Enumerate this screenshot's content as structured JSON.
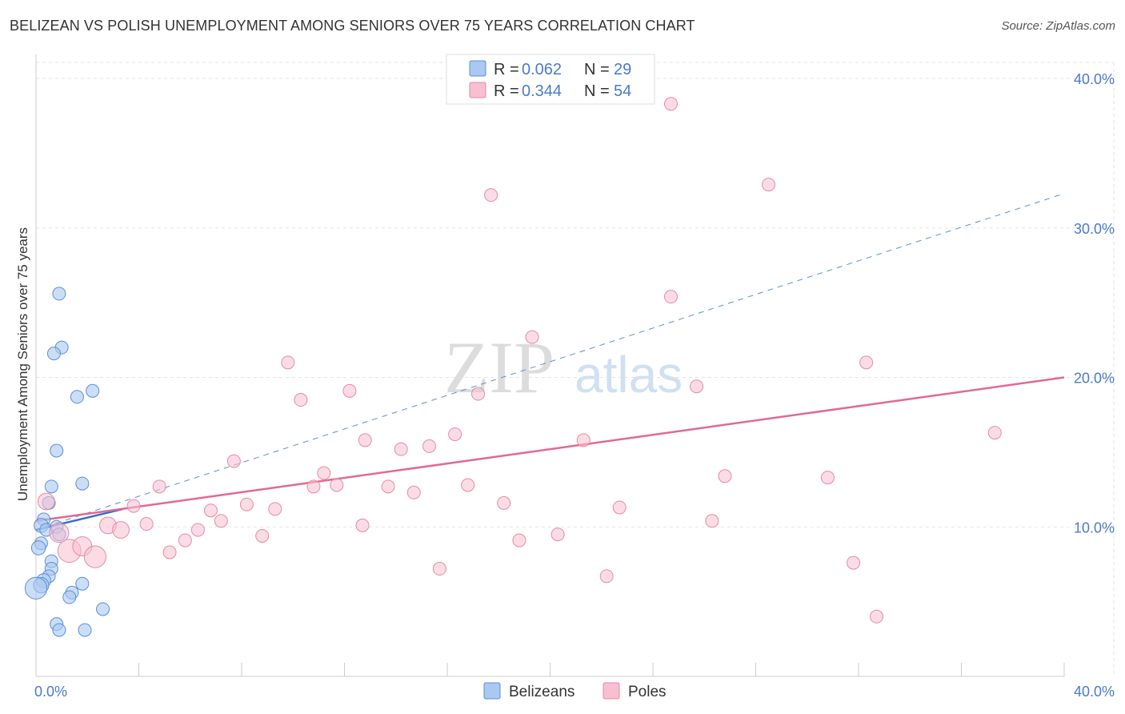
{
  "title": "BELIZEAN VS POLISH UNEMPLOYMENT AMONG SENIORS OVER 75 YEARS CORRELATION CHART",
  "source": "Source: ZipAtlas.com",
  "watermark": {
    "zip": "ZIP",
    "atlas": "atlas"
  },
  "colors": {
    "belizeans_fill": "#aac8f0",
    "belizeans_stroke": "#5a8fd8",
    "belizeans_line": "#3a6fc8",
    "poles_fill": "#f7bfd0",
    "poles_stroke": "#e58aa8",
    "poles_line": "#e06a92",
    "tick_text": "#4a7bc8",
    "grid": "#e3e3e3"
  },
  "legend": {
    "rows": [
      {
        "r_label": "R = ",
        "r_value": "0.062",
        "n_label": "N = ",
        "n_value": "29"
      },
      {
        "r_label": "R = ",
        "r_value": "0.344",
        "n_label": "N = ",
        "n_value": "54"
      }
    ]
  },
  "bottom_legend": {
    "series1": "Belizeans",
    "series2": "Poles"
  },
  "chart_data": {
    "type": "scatter",
    "title": "BELIZEAN VS POLISH UNEMPLOYMENT AMONG SENIORS OVER 75 YEARS CORRELATION CHART",
    "xlabel": "",
    "ylabel": "Unemployment Among Seniors over 75 years",
    "xlim": [
      0,
      40
    ],
    "ylim": [
      0,
      40
    ],
    "x_tick_labels": [
      "0.0%",
      "40.0%"
    ],
    "y_ticks": [
      10,
      20,
      30,
      40
    ],
    "y_tick_labels": [
      "10.0%",
      "20.0%",
      "30.0%",
      "40.0%"
    ],
    "series": [
      {
        "name": "Belizeans",
        "r": 0.062,
        "n": 29,
        "trendline": {
          "x": [
            0,
            3.4
          ],
          "y": [
            9.8,
            11.2
          ],
          "style": "solid"
        },
        "trendline_extended": {
          "x": [
            0,
            40
          ],
          "y": [
            9.8,
            32.3
          ],
          "style": "dashed"
        },
        "points": [
          {
            "x": 0.9,
            "y": 25.6,
            "s": 1
          },
          {
            "x": 1.0,
            "y": 22.0,
            "s": 1
          },
          {
            "x": 0.7,
            "y": 21.6,
            "s": 1
          },
          {
            "x": 1.6,
            "y": 18.7,
            "s": 1
          },
          {
            "x": 2.2,
            "y": 19.1,
            "s": 1
          },
          {
            "x": 0.8,
            "y": 15.1,
            "s": 1
          },
          {
            "x": 0.6,
            "y": 12.7,
            "s": 1
          },
          {
            "x": 1.8,
            "y": 12.9,
            "s": 1
          },
          {
            "x": 0.5,
            "y": 11.6,
            "s": 1
          },
          {
            "x": 0.3,
            "y": 10.5,
            "s": 1
          },
          {
            "x": 0.2,
            "y": 10.1,
            "s": 1.1
          },
          {
            "x": 0.4,
            "y": 9.8,
            "s": 1
          },
          {
            "x": 0.8,
            "y": 10.0,
            "s": 1
          },
          {
            "x": 0.9,
            "y": 9.5,
            "s": 1
          },
          {
            "x": 0.2,
            "y": 8.9,
            "s": 1
          },
          {
            "x": 0.1,
            "y": 8.6,
            "s": 1.1
          },
          {
            "x": 0.6,
            "y": 7.7,
            "s": 1
          },
          {
            "x": 0.6,
            "y": 7.2,
            "s": 1
          },
          {
            "x": 0.5,
            "y": 6.7,
            "s": 1
          },
          {
            "x": 1.8,
            "y": 6.2,
            "s": 1
          },
          {
            "x": 0.3,
            "y": 6.4,
            "s": 1.1
          },
          {
            "x": 0.2,
            "y": 6.1,
            "s": 1.2
          },
          {
            "x": 0.0,
            "y": 5.9,
            "s": 1.7
          },
          {
            "x": 1.4,
            "y": 5.6,
            "s": 1
          },
          {
            "x": 1.3,
            "y": 5.3,
            "s": 1
          },
          {
            "x": 2.6,
            "y": 4.5,
            "s": 1
          },
          {
            "x": 0.8,
            "y": 3.5,
            "s": 1
          },
          {
            "x": 0.9,
            "y": 3.1,
            "s": 1
          },
          {
            "x": 1.9,
            "y": 3.1,
            "s": 1
          }
        ]
      },
      {
        "name": "Poles",
        "r": 0.344,
        "n": 54,
        "trendline": {
          "x": [
            0,
            40
          ],
          "y": [
            10.4,
            20.0
          ],
          "style": "solid"
        },
        "points": [
          {
            "x": 0.4,
            "y": 11.7,
            "s": 1.3
          },
          {
            "x": 0.9,
            "y": 9.6,
            "s": 1.5
          },
          {
            "x": 1.3,
            "y": 8.4,
            "s": 1.8
          },
          {
            "x": 1.8,
            "y": 8.7,
            "s": 1.5
          },
          {
            "x": 2.3,
            "y": 8.0,
            "s": 1.7
          },
          {
            "x": 2.8,
            "y": 10.1,
            "s": 1.3
          },
          {
            "x": 3.3,
            "y": 9.8,
            "s": 1.3
          },
          {
            "x": 3.8,
            "y": 11.4,
            "s": 1
          },
          {
            "x": 4.3,
            "y": 10.2,
            "s": 1
          },
          {
            "x": 4.8,
            "y": 12.7,
            "s": 1
          },
          {
            "x": 5.2,
            "y": 8.3,
            "s": 1
          },
          {
            "x": 5.8,
            "y": 9.1,
            "s": 1
          },
          {
            "x": 6.3,
            "y": 9.8,
            "s": 1
          },
          {
            "x": 6.8,
            "y": 11.1,
            "s": 1
          },
          {
            "x": 7.2,
            "y": 10.4,
            "s": 1
          },
          {
            "x": 7.7,
            "y": 14.4,
            "s": 1
          },
          {
            "x": 8.2,
            "y": 11.5,
            "s": 1
          },
          {
            "x": 8.8,
            "y": 9.4,
            "s": 1
          },
          {
            "x": 9.3,
            "y": 11.2,
            "s": 1
          },
          {
            "x": 9.8,
            "y": 21.0,
            "s": 1
          },
          {
            "x": 10.3,
            "y": 18.5,
            "s": 1
          },
          {
            "x": 10.8,
            "y": 12.7,
            "s": 1
          },
          {
            "x": 11.2,
            "y": 13.6,
            "s": 1
          },
          {
            "x": 11.7,
            "y": 12.8,
            "s": 1
          },
          {
            "x": 12.2,
            "y": 19.1,
            "s": 1
          },
          {
            "x": 12.7,
            "y": 10.1,
            "s": 1
          },
          {
            "x": 12.8,
            "y": 15.8,
            "s": 1
          },
          {
            "x": 13.7,
            "y": 12.7,
            "s": 1
          },
          {
            "x": 14.2,
            "y": 15.2,
            "s": 1
          },
          {
            "x": 14.7,
            "y": 12.3,
            "s": 1
          },
          {
            "x": 15.3,
            "y": 15.4,
            "s": 1
          },
          {
            "x": 15.7,
            "y": 7.2,
            "s": 1
          },
          {
            "x": 16.3,
            "y": 16.2,
            "s": 1
          },
          {
            "x": 16.8,
            "y": 12.8,
            "s": 1
          },
          {
            "x": 17.2,
            "y": 18.9,
            "s": 1
          },
          {
            "x": 17.7,
            "y": 32.2,
            "s": 1
          },
          {
            "x": 18.2,
            "y": 11.6,
            "s": 1
          },
          {
            "x": 18.8,
            "y": 9.1,
            "s": 1
          },
          {
            "x": 19.3,
            "y": 22.7,
            "s": 1
          },
          {
            "x": 20.3,
            "y": 9.5,
            "s": 1
          },
          {
            "x": 21.3,
            "y": 15.8,
            "s": 1
          },
          {
            "x": 22.2,
            "y": 6.7,
            "s": 1
          },
          {
            "x": 22.7,
            "y": 11.3,
            "s": 1
          },
          {
            "x": 24.7,
            "y": 25.4,
            "s": 1
          },
          {
            "x": 24.7,
            "y": 38.3,
            "s": 1
          },
          {
            "x": 25.7,
            "y": 19.4,
            "s": 1
          },
          {
            "x": 26.3,
            "y": 10.4,
            "s": 1
          },
          {
            "x": 26.8,
            "y": 13.4,
            "s": 1
          },
          {
            "x": 28.5,
            "y": 32.9,
            "s": 1
          },
          {
            "x": 30.8,
            "y": 13.3,
            "s": 1
          },
          {
            "x": 31.8,
            "y": 7.6,
            "s": 1
          },
          {
            "x": 32.3,
            "y": 21.0,
            "s": 1
          },
          {
            "x": 32.7,
            "y": 4.0,
            "s": 1
          },
          {
            "x": 37.3,
            "y": 16.3,
            "s": 1
          }
        ]
      }
    ]
  }
}
